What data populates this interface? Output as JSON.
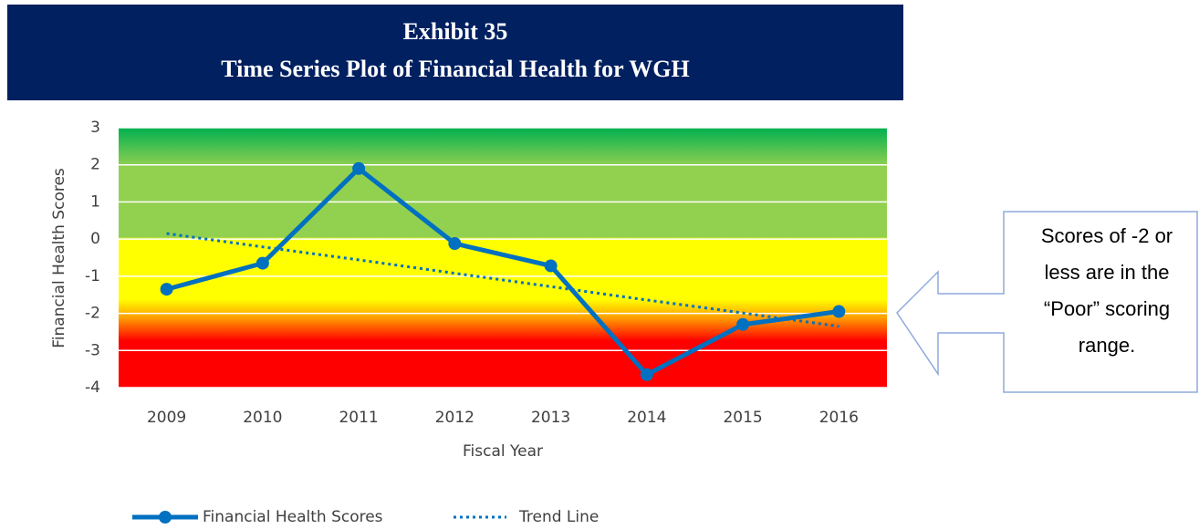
{
  "chart_data": {
    "type": "line",
    "title": "Exhibit 35",
    "subtitle": "Time Series Plot of Financial Health for WGH",
    "y_label": "Financial Health Scores",
    "x_label": "Fiscal Year",
    "categories": [
      "2009",
      "2010",
      "2011",
      "2012",
      "2013",
      "2014",
      "2015",
      "2016"
    ],
    "series": [
      {
        "name": "Financial Health Scores",
        "color": "#0070c0",
        "values": [
          -1.35,
          -0.65,
          1.9,
          -0.12,
          -0.72,
          -3.65,
          -2.3,
          -1.95
        ]
      },
      {
        "name": "Trend Line",
        "color": "#0070c0",
        "style": "dotted",
        "values": [
          0.15,
          -0.21,
          -0.56,
          -0.92,
          -1.28,
          -1.64,
          -1.99,
          -2.35
        ]
      }
    ],
    "ylim": [
      -4,
      3
    ],
    "yticks": [
      -4,
      -3,
      -2,
      -1,
      0,
      1,
      2,
      3
    ],
    "grid": true,
    "legend": "bottom",
    "annotation_lines": [
      "Scores of -2 or",
      "less are in the",
      "“Poor” scoring",
      "range."
    ]
  }
}
